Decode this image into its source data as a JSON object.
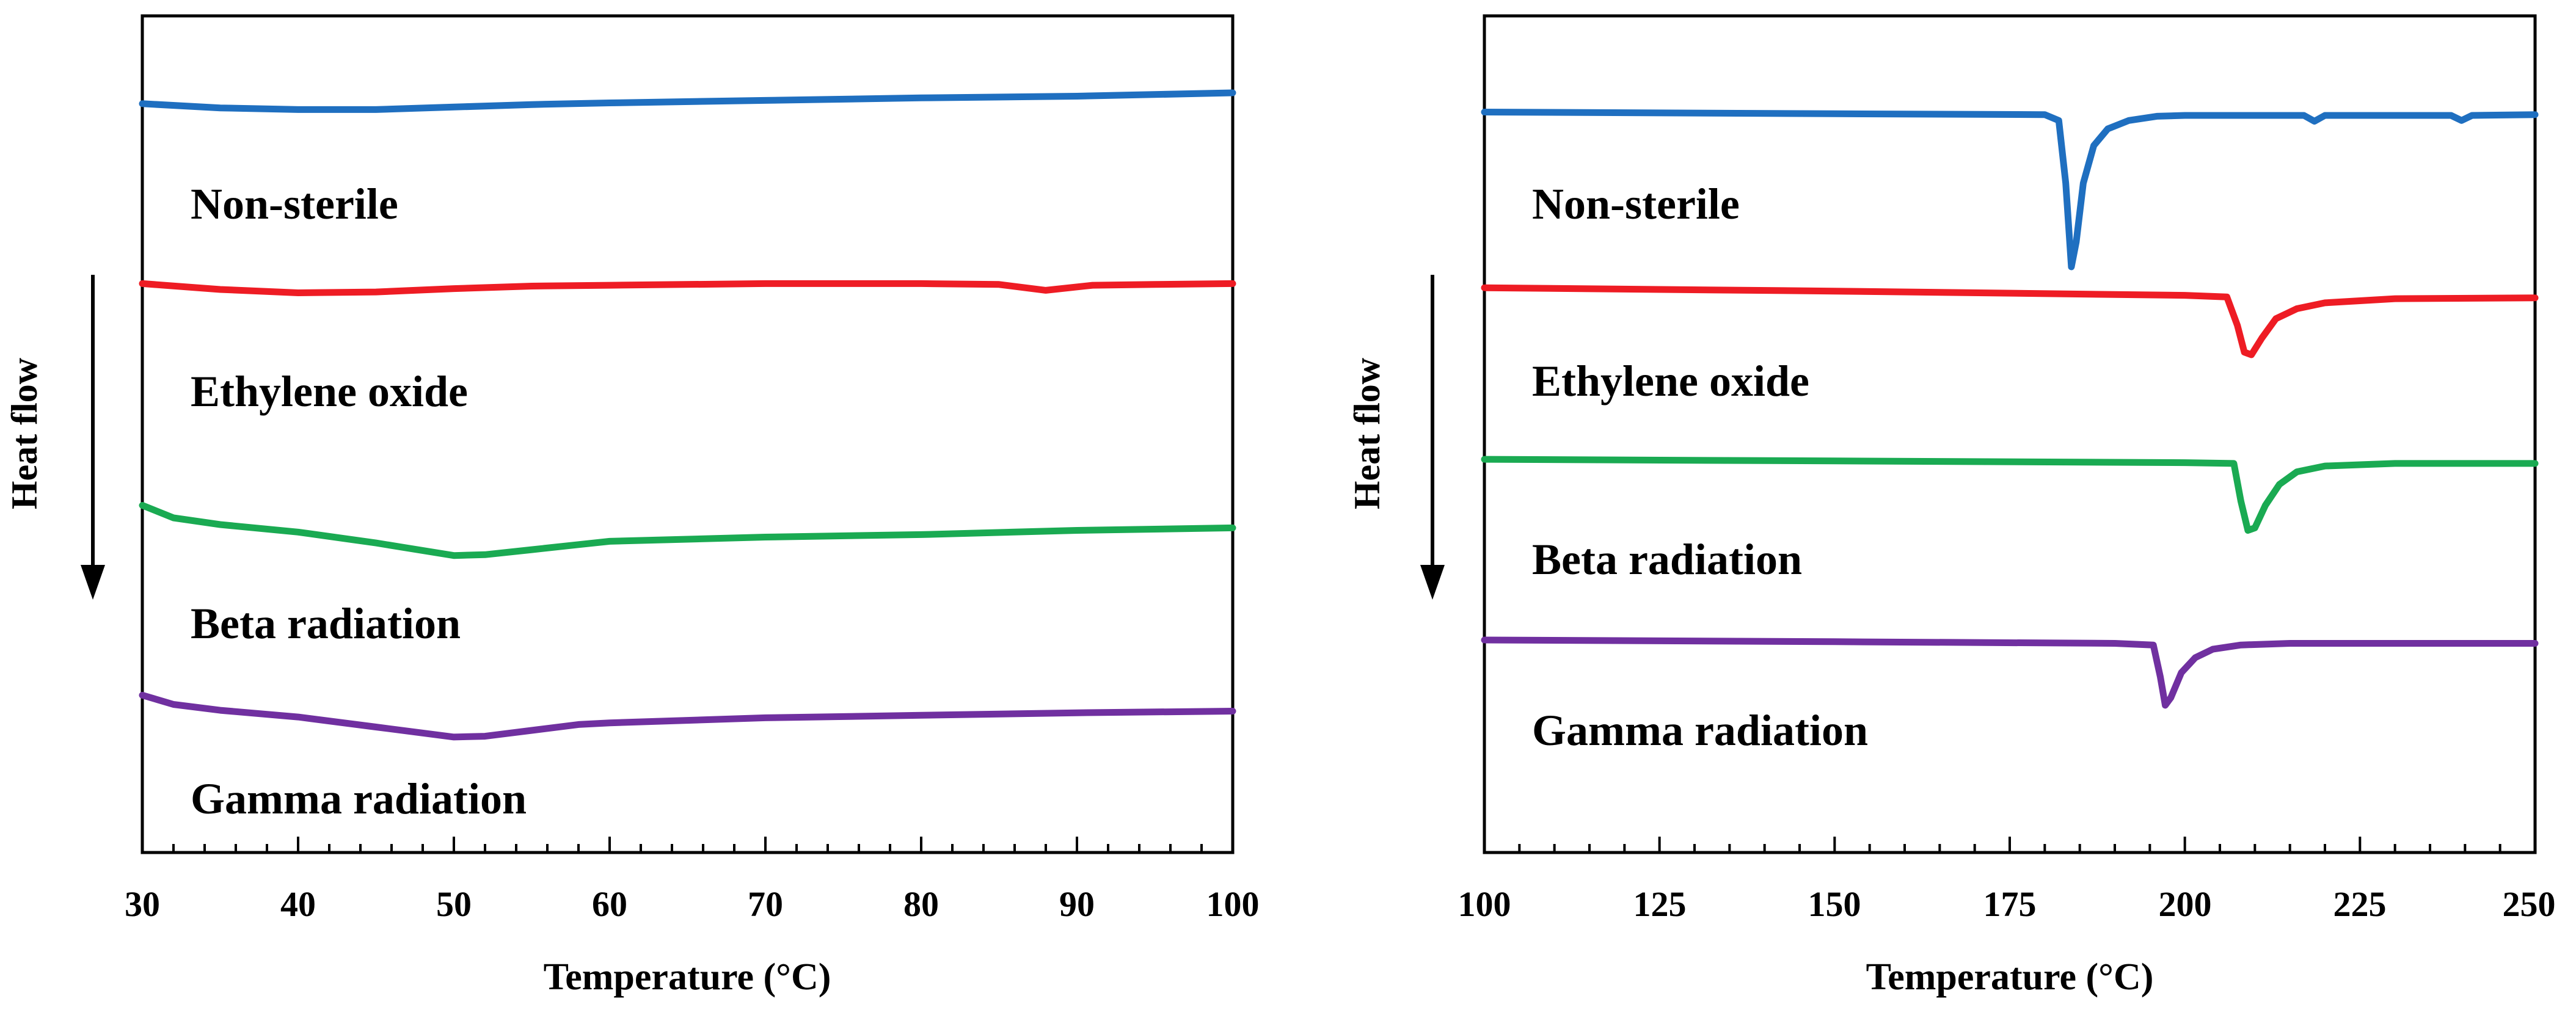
{
  "chart_data": [
    {
      "type": "line",
      "xlabel": "Temperature (°C)",
      "ylabel": "Heat flow",
      "xlim": [
        30,
        100
      ],
      "xticks": [
        "30",
        "40",
        "50",
        "60",
        "70",
        "80",
        "90",
        "100"
      ],
      "ylim": [
        0,
        100
      ],
      "grid": false,
      "series": [
        {
          "name": "Non-sterile",
          "color": "#1f6fc0",
          "x": [
            30,
            35,
            40,
            45,
            50,
            55,
            60,
            70,
            80,
            90,
            100
          ],
          "y": [
            89.5,
            89.0,
            88.8,
            88.8,
            89.1,
            89.4,
            89.6,
            89.9,
            90.2,
            90.4,
            90.8
          ]
        },
        {
          "name": "Ethylene oxide",
          "color": "#ee1c24",
          "x": [
            30,
            35,
            40,
            45,
            50,
            55,
            60,
            70,
            80,
            85,
            88,
            91,
            95,
            100
          ],
          "y": [
            68.0,
            67.3,
            66.9,
            67.0,
            67.4,
            67.7,
            67.8,
            68.0,
            68.0,
            67.9,
            67.2,
            67.8,
            67.9,
            68.0
          ]
        },
        {
          "name": "Beta radiation",
          "color": "#1aaa52",
          "x": [
            30,
            32,
            35,
            40,
            45,
            50,
            52,
            55,
            58,
            60,
            70,
            80,
            90,
            100
          ],
          "y": [
            41.5,
            40.0,
            39.2,
            38.3,
            37.0,
            35.5,
            35.6,
            36.2,
            36.8,
            37.2,
            37.7,
            38.0,
            38.5,
            38.8
          ]
        },
        {
          "name": "Gamma radiation",
          "color": "#7030a0",
          "x": [
            30,
            32,
            35,
            40,
            45,
            50,
            52,
            55,
            58,
            60,
            70,
            80,
            90,
            100
          ],
          "y": [
            18.8,
            17.7,
            17.0,
            16.2,
            15.0,
            13.8,
            13.9,
            14.6,
            15.3,
            15.5,
            16.1,
            16.4,
            16.7,
            16.9
          ]
        }
      ],
      "annotations": [
        "Non-sterile",
        "Ethylene oxide",
        "Beta radiation",
        "Gamma radiation"
      ]
    },
    {
      "type": "line",
      "xlabel": "Temperature (°C)",
      "ylabel": "Heat flow",
      "xlim": [
        100,
        250
      ],
      "xticks": [
        "100",
        "125",
        "150",
        "175",
        "200",
        "225",
        "250"
      ],
      "ylim": [
        0,
        100
      ],
      "grid": false,
      "series": [
        {
          "name": "Non-sterile",
          "color": "#1f6fc0",
          "x": [
            100,
            150,
            180,
            182,
            183,
            183.8,
            184.5,
            185.5,
            187,
            189,
            192,
            196,
            200,
            217,
            218.5,
            220,
            238,
            239.5,
            241,
            250
          ],
          "y": [
            88.5,
            88.3,
            88.2,
            87.5,
            80,
            70,
            73,
            80,
            84.5,
            86.5,
            87.5,
            88,
            88.1,
            88.1,
            87.4,
            88.1,
            88.1,
            87.5,
            88.1,
            88.2
          ]
        },
        {
          "name": "Ethylene oxide",
          "color": "#ee1c24",
          "x": [
            100,
            150,
            200,
            206,
            207.5,
            208.5,
            209.5,
            211,
            213,
            216,
            220,
            230,
            250
          ],
          "y": [
            67.5,
            67.1,
            66.6,
            66.4,
            63,
            59.8,
            59.5,
            61.5,
            63.8,
            65.0,
            65.7,
            66.2,
            66.3
          ]
        },
        {
          "name": "Beta radiation",
          "color": "#1aaa52",
          "x": [
            100,
            150,
            200,
            207,
            208,
            209,
            210,
            211.5,
            213.5,
            216,
            220,
            230,
            250
          ],
          "y": [
            47,
            46.8,
            46.6,
            46.5,
            42,
            38.5,
            38.8,
            41.5,
            44,
            45.5,
            46.2,
            46.5,
            46.5
          ]
        },
        {
          "name": "Gamma radiation",
          "color": "#7030a0",
          "x": [
            100,
            150,
            190,
            195.5,
            196.5,
            197.2,
            198,
            199.5,
            201.5,
            204,
            208,
            215,
            250
          ],
          "y": [
            25.4,
            25.2,
            25.0,
            24.8,
            21,
            17.6,
            18.5,
            21.5,
            23.3,
            24.3,
            24.8,
            25.0,
            25.0
          ]
        }
      ],
      "annotations": [
        "Non-sterile",
        "Ethylene oxide",
        "Beta radiation",
        "Gamma radiation"
      ]
    }
  ]
}
